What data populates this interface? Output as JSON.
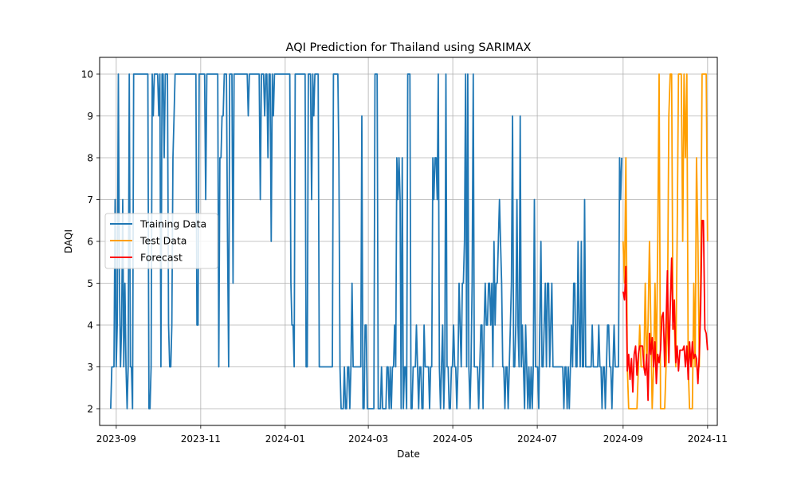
{
  "chart_data": {
    "type": "line",
    "title": "AQI Prediction for Thailand using SARIMAX",
    "xlabel": "Date",
    "ylabel": "DAQI",
    "xlim": [
      "2023-08-20",
      "2024-11-08"
    ],
    "ylim": [
      1.6,
      10.4
    ],
    "x_ticks": [
      "2023-09",
      "2023-11",
      "2024-01",
      "2024-03",
      "2024-05",
      "2024-07",
      "2024-09",
      "2024-11"
    ],
    "y_ticks": [
      2,
      3,
      4,
      5,
      6,
      7,
      8,
      9,
      10
    ],
    "grid": true,
    "legend_position": "center-left",
    "series": [
      {
        "name": "Training Data",
        "color": "#1f77b4",
        "start": "2023-08-28",
        "end": "2024-08-31",
        "values": [
          2,
          3,
          3,
          3,
          7,
          3,
          4,
          10,
          5,
          3,
          4,
          7,
          3,
          5,
          3,
          2,
          3,
          10,
          3,
          3,
          2,
          10,
          10,
          10,
          10,
          10,
          10,
          10,
          10,
          10,
          10,
          10,
          10,
          10,
          10,
          2,
          2,
          3,
          10,
          9,
          10,
          10,
          10,
          10,
          9,
          10,
          3,
          10,
          10,
          8,
          10,
          10,
          10,
          4,
          3,
          3,
          4,
          8,
          9,
          10,
          10,
          10,
          10,
          10,
          10,
          10,
          10,
          10,
          10,
          10,
          10,
          10,
          10,
          10,
          10,
          10,
          10,
          10,
          10,
          4,
          4,
          10,
          10,
          10,
          10,
          10,
          10,
          7,
          10,
          10,
          10,
          10,
          10,
          10,
          10,
          10,
          10,
          10,
          10,
          3,
          8,
          8,
          9,
          9,
          10,
          10,
          10,
          6,
          3,
          10,
          10,
          10,
          5,
          10,
          10,
          10,
          10,
          10,
          10,
          10,
          10,
          10,
          10,
          10,
          10,
          10,
          9,
          10,
          10,
          10,
          10,
          10,
          10,
          10,
          10,
          10,
          10,
          7,
          10,
          10,
          10,
          9,
          10,
          10,
          8,
          10,
          10,
          6,
          10,
          9,
          10,
          10,
          10,
          10,
          10,
          10,
          10,
          10,
          10,
          10,
          10,
          10,
          10,
          10,
          10,
          5,
          4,
          4,
          3,
          10,
          10,
          10,
          10,
          10,
          10,
          10,
          10,
          10,
          10,
          3,
          3,
          10,
          10,
          10,
          7,
          10,
          9,
          10,
          10,
          10,
          10,
          3,
          3,
          3,
          3,
          3,
          3,
          3,
          3,
          3,
          3,
          3,
          3,
          3,
          10,
          10,
          10,
          10,
          10,
          8,
          3,
          2,
          2,
          2,
          3,
          2,
          2,
          3,
          3,
          2,
          3,
          5,
          3,
          3,
          3,
          3,
          3,
          3,
          3,
          3,
          9,
          2,
          2,
          4,
          4,
          2,
          2,
          2,
          2,
          2,
          2,
          2,
          10,
          10,
          10,
          2,
          2,
          2,
          3,
          2,
          2,
          2,
          2,
          3,
          3,
          2,
          3,
          2,
          3,
          3,
          4,
          3,
          8,
          7,
          8,
          7,
          2,
          8,
          2,
          3,
          3,
          2,
          10,
          10,
          10,
          2,
          2,
          3,
          3,
          3,
          4,
          3,
          2,
          3,
          3,
          2,
          2,
          4,
          3,
          3,
          3,
          3,
          2,
          3,
          3,
          8,
          7,
          8,
          8,
          7,
          10,
          3,
          2,
          3,
          4,
          2,
          3,
          10,
          3,
          3,
          2,
          2,
          3,
          3,
          4,
          3,
          3,
          2,
          3,
          5,
          4,
          3,
          5,
          5,
          6,
          10,
          3,
          10,
          3,
          2,
          3,
          5,
          10,
          3,
          3,
          3,
          3,
          2,
          3,
          4,
          4,
          2,
          4,
          5,
          4,
          4,
          5,
          5,
          4,
          5,
          3,
          6,
          4,
          5,
          5,
          6,
          7,
          6,
          5,
          3,
          3,
          2,
          3,
          3,
          2,
          3,
          4,
          5,
          9,
          3,
          3,
          4,
          7,
          4,
          3,
          9,
          3,
          4,
          3,
          2,
          4,
          3,
          2,
          3,
          2,
          3,
          2,
          3,
          7,
          3,
          3,
          3,
          2,
          4,
          6,
          3,
          3,
          4,
          5,
          3,
          5,
          5,
          3,
          4,
          5,
          3,
          3,
          3,
          3,
          3,
          3,
          3,
          3,
          3,
          3,
          2,
          3,
          3,
          2,
          3,
          2,
          3,
          4,
          3,
          5,
          5,
          3,
          3,
          6,
          4,
          3,
          6,
          3,
          3,
          7,
          3,
          3,
          3,
          3,
          3,
          3,
          4,
          3,
          3,
          3,
          3,
          3,
          4,
          3,
          3,
          2,
          3,
          3,
          2,
          3,
          4,
          4,
          3,
          3,
          2,
          3,
          4,
          3,
          3,
          3,
          3,
          8,
          7,
          8
        ]
      },
      {
        "name": "Test Data",
        "color": "#ff9f00",
        "start": "2024-09-01",
        "end": "2024-11-01",
        "values": [
          6,
          5,
          8,
          3,
          2,
          2,
          2,
          2,
          2,
          2,
          2,
          3,
          4,
          3,
          3,
          3,
          5,
          3,
          4,
          6,
          4,
          2,
          3,
          5,
          3,
          6,
          10,
          2,
          2,
          2,
          2,
          3,
          4,
          9,
          10,
          10,
          4,
          4,
          3,
          6,
          10,
          10,
          10,
          6,
          10,
          8,
          10,
          3,
          2,
          2,
          2,
          5,
          3,
          8,
          6,
          3,
          5,
          10,
          10,
          10,
          10,
          6
        ]
      },
      {
        "name": "Forecast",
        "color": "#ff0000",
        "start": "2024-09-01",
        "end": "2024-11-01",
        "values": [
          4.8,
          4.6,
          5.4,
          2.9,
          3.3,
          2.7,
          3.2,
          2.4,
          3.3,
          3.5,
          2.8,
          3.3,
          3.5,
          3.5,
          3.5,
          3.0,
          2.8,
          3.3,
          2.2,
          3.8,
          3.3,
          3.7,
          3.0,
          3.6,
          2.6,
          3.3,
          3.1,
          3.4,
          4.2,
          4.3,
          3.0,
          4.0,
          5.3,
          3.1,
          4.4,
          5.6,
          3.9,
          4.6,
          3.1,
          3.5,
          2.9,
          3.4,
          3.4,
          3.4,
          3.5,
          3.0,
          3.5,
          2.7,
          3.6,
          3.0,
          3.6,
          3.2,
          3.3,
          3.2,
          2.6,
          3.3,
          4.4,
          6.5,
          6.5,
          3.9,
          3.8,
          3.4
        ]
      }
    ]
  }
}
